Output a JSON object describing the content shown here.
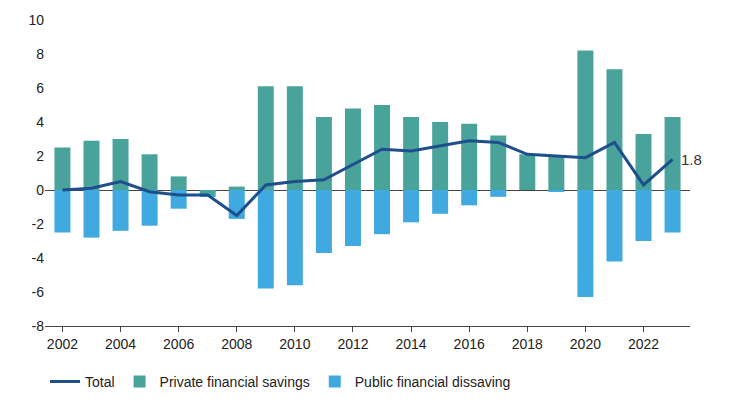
{
  "chart_data": {
    "type": "bar",
    "stacked": true,
    "x": [
      2002,
      2003,
      2004,
      2005,
      2006,
      2007,
      2008,
      2009,
      2010,
      2011,
      2012,
      2013,
      2014,
      2015,
      2016,
      2017,
      2018,
      2019,
      2020,
      2021,
      2022,
      2023
    ],
    "series": [
      {
        "name": "Total",
        "type": "line",
        "color": "#1f4e8c",
        "values": [
          0.0,
          0.1,
          0.5,
          -0.1,
          -0.3,
          -0.3,
          -1.5,
          0.3,
          0.5,
          0.6,
          1.5,
          2.4,
          2.3,
          2.6,
          2.9,
          2.8,
          2.1,
          2.0,
          1.9,
          2.8,
          0.3,
          1.8
        ]
      },
      {
        "name": "Private financial savings",
        "type": "bar",
        "color": "#4aa39b",
        "values": [
          2.5,
          2.9,
          3.0,
          2.1,
          0.8,
          -0.3,
          0.2,
          6.1,
          6.1,
          4.3,
          4.8,
          5.0,
          4.3,
          4.0,
          3.9,
          3.2,
          2.1,
          2.0,
          8.2,
          7.1,
          3.3,
          4.3
        ]
      },
      {
        "name": "Public financial dissaving",
        "type": "bar",
        "color": "#3fa9e0",
        "values": [
          -2.5,
          -2.8,
          -2.4,
          -2.1,
          -1.1,
          -0.1,
          -1.7,
          -5.8,
          -5.6,
          -3.7,
          -3.3,
          -2.6,
          -1.9,
          -1.4,
          -0.9,
          -0.4,
          0.0,
          -0.1,
          -6.3,
          -4.2,
          -3.0,
          -2.5
        ]
      }
    ],
    "annotations": [
      {
        "x": 2023,
        "y": 1.8,
        "text": "1.8"
      }
    ],
    "xlim": [
      2001.4,
      2023.6
    ],
    "xticks": [
      2002,
      2004,
      2006,
      2008,
      2010,
      2012,
      2014,
      2016,
      2018,
      2020,
      2022
    ],
    "ylim": [
      -8,
      10
    ],
    "yticks": [
      -8,
      -6,
      -4,
      -2,
      0,
      2,
      4,
      6,
      8,
      10
    ],
    "grid": false,
    "legend": "bottom"
  }
}
